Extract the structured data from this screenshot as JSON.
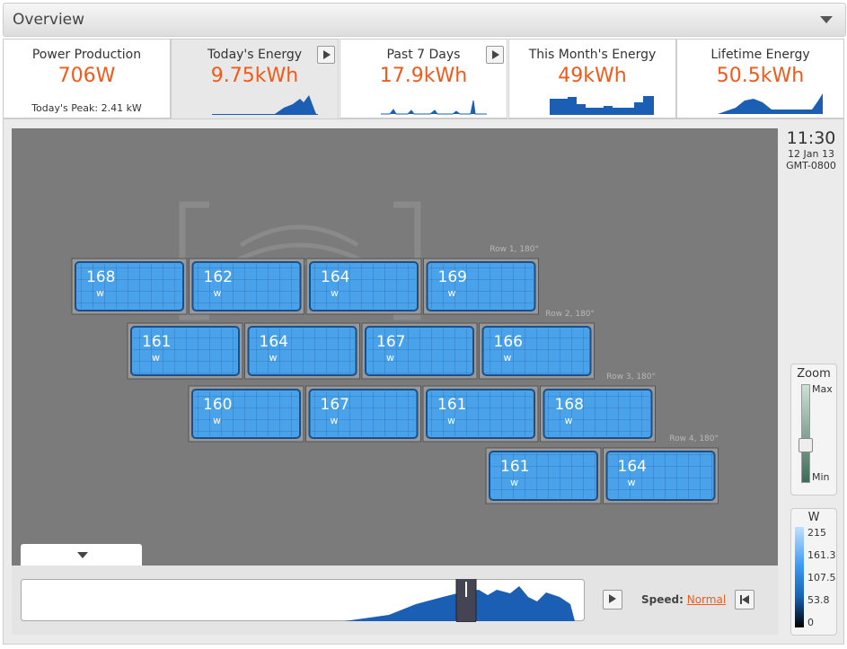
{
  "header": {
    "title": "Overview"
  },
  "tabs": [
    {
      "title": "Power Production",
      "value": "706W",
      "note": "Today's Peak: 2.41 kW"
    },
    {
      "title": "Today's Energy",
      "value": "9.75kWh"
    },
    {
      "title": "Past 7 Days",
      "value": "17.9kWh"
    },
    {
      "title": "This Month's Energy",
      "value": "49kWh"
    },
    {
      "title": "Lifetime Energy",
      "value": "50.5kWh"
    }
  ],
  "clock": {
    "time": "11:30",
    "date": "12 Jan 13",
    "zone": "GMT-0800"
  },
  "array": {
    "unit": "w",
    "rows": [
      {
        "label": "Row 1, 180°",
        "panels": [
          "168",
          "162",
          "164",
          "169"
        ]
      },
      {
        "label": "Row 2, 180°",
        "panels": [
          "161",
          "164",
          "167",
          "166"
        ]
      },
      {
        "label": "Row 3, 180°",
        "panels": [
          "160",
          "167",
          "161",
          "168"
        ]
      },
      {
        "label": "Row 4, 180°",
        "panels": [
          "161",
          "164"
        ]
      }
    ]
  },
  "zoom": {
    "title": "Zoom",
    "max": "Max",
    "min": "Min"
  },
  "legend": {
    "title": "W",
    "ticks": [
      "215",
      "161.3",
      "107.5",
      "53.8",
      "0"
    ]
  },
  "playback": {
    "speed_label": "Speed:",
    "speed": "Normal"
  }
}
